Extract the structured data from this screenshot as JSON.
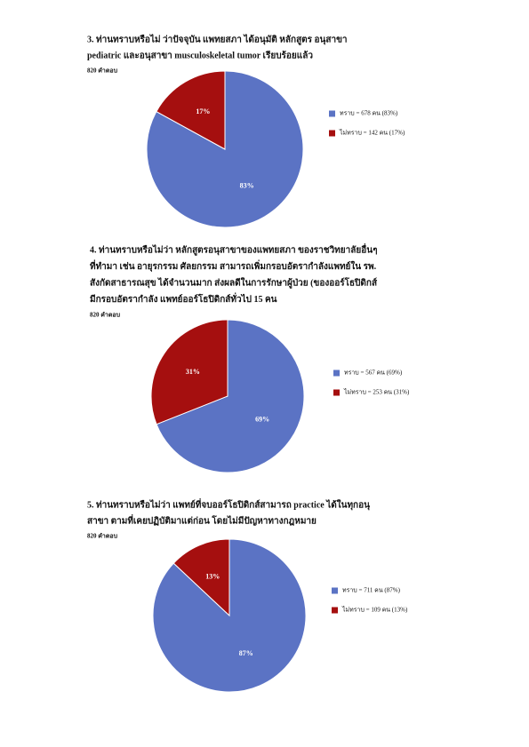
{
  "chart_data": [
    {
      "type": "pie",
      "title": [
        "3. ท่านทราบหรือไม่ ว่าปัจจุบัน แพทยสภา ได้อนุมัติ หลักสูตร อนุสาขา",
        "pediatric และอนุสาขา musculoskeletal tumor เรียบร้อยแล้ว"
      ],
      "subtitle": "820 คำตอบ",
      "categories": [
        "ทราบ = 678 คน (83%)",
        "ไม่ทราบ = 142 คน (17%)"
      ],
      "values": [
        83,
        17
      ],
      "value_labels": [
        "83%",
        "17%"
      ],
      "colors": [
        "#5b73c4",
        "#a50f0f"
      ]
    },
    {
      "type": "pie",
      "title": [
        "4. ท่านทราบหรือไม่ว่า หลักสูตรอนุสาขาของแพทยสภา ของราชวิทยาลัยอื่นๆ",
        "ที่ทำมา เช่น อายุรกรรม ศัลยกรรม สามารถเพิ่มกรอบอัตรากำลังแพทย์ใน รพ.",
        "สังกัดสาธารณสุข ได้จำนวนมาก ส่งผลดีในการรักษาผู้ป่วย (ของออร์โธปิดิกส์",
        "มีกรอบอัตรากำลัง แพทย์ออร์โธปิดิกส์ทั่วไป 15 คน"
      ],
      "subtitle": "820 คำตอบ",
      "categories": [
        "ทราบ = 567 คน (69%)",
        "ไม่ทราบ = 253 คน (31%)"
      ],
      "values": [
        69,
        31
      ],
      "value_labels": [
        "69%",
        "31%"
      ],
      "colors": [
        "#5b73c4",
        "#a50f0f"
      ]
    },
    {
      "type": "pie",
      "title": [
        "5. ท่านทราบหรือไม่ว่า แพทย์ที่จบออร์โธปิดิกส์สามารถ practice ได้ในทุกอนุ",
        "สาขา ตามที่เคยปฏิบัติมาแต่ก่อน โดยไม่มีปัญหาทางกฎหมาย"
      ],
      "subtitle": "820 คำตอบ",
      "categories": [
        "ทราบ = 711 คน (87%)",
        "ไม่ทราบ = 109 คน (13%)"
      ],
      "values": [
        87,
        13
      ],
      "value_labels": [
        "87%",
        "13%"
      ],
      "colors": [
        "#5b73c4",
        "#a50f0f"
      ]
    }
  ]
}
